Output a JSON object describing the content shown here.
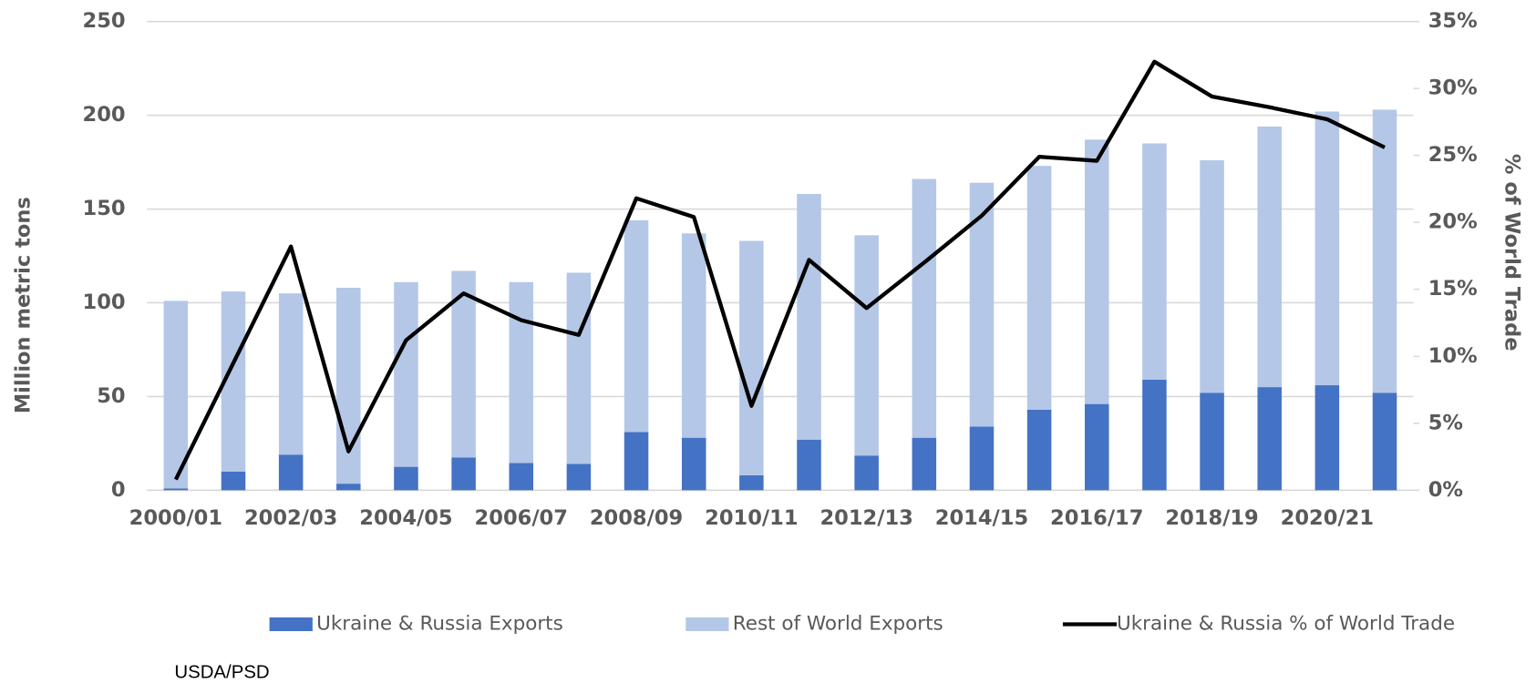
{
  "chart_data": {
    "type": "bar",
    "stacked": true,
    "categories": [
      "2000/01",
      null,
      "2002/03",
      null,
      "2004/05",
      null,
      "2006/07",
      null,
      "2008/09",
      null,
      "2010/11",
      null,
      "2012/13",
      null,
      "2014/15",
      null,
      "2016/17",
      null,
      "2018/19",
      null,
      "2020/21",
      null
    ],
    "series": [
      {
        "name": "Ukraine & Russia Exports",
        "color": "#4472c4",
        "type": "bar",
        "values": [
          1,
          10,
          19,
          3.5,
          12.5,
          17.5,
          14.5,
          14,
          31,
          28,
          8,
          27,
          18.5,
          28,
          34,
          43,
          46,
          59,
          52,
          55,
          56,
          52
        ]
      },
      {
        "name": "Rest of World Exports",
        "color": "#b4c7e7",
        "type": "bar",
        "values": [
          100,
          96,
          86,
          104.5,
          98.5,
          99.5,
          96.5,
          102,
          113,
          109,
          125,
          131,
          117.5,
          138,
          130,
          130,
          141,
          126,
          124,
          139,
          146,
          151
        ]
      },
      {
        "name": "Ukraine & Russia % of World Trade",
        "color": "#000000",
        "type": "line",
        "axis": "y2",
        "values": [
          0.8,
          9.5,
          18.2,
          2.9,
          11.2,
          14.7,
          12.7,
          11.6,
          21.8,
          20.4,
          6.3,
          17.2,
          13.6,
          17.0,
          20.5,
          24.9,
          24.6,
          32.0,
          29.4,
          28.6,
          27.7,
          25.6
        ]
      }
    ],
    "ylabel": "Million metric tons",
    "y2label": "% of World Trade",
    "ylim": [
      0,
      250
    ],
    "yticks": [
      0,
      50,
      100,
      150,
      200,
      250
    ],
    "y2lim": [
      0,
      35
    ],
    "y2ticks": [
      {
        "value": 0,
        "label": "0%"
      },
      {
        "value": 5,
        "label": "5%"
      },
      {
        "value": 10,
        "label": "10%"
      },
      {
        "value": 15,
        "label": "15%"
      },
      {
        "value": 20,
        "label": "20%"
      },
      {
        "value": 25,
        "label": "25%"
      },
      {
        "value": 30,
        "label": "30%"
      },
      {
        "value": 35,
        "label": "35%"
      }
    ],
    "grid": true,
    "legend": "bottom",
    "source": "USDA/PSD"
  }
}
